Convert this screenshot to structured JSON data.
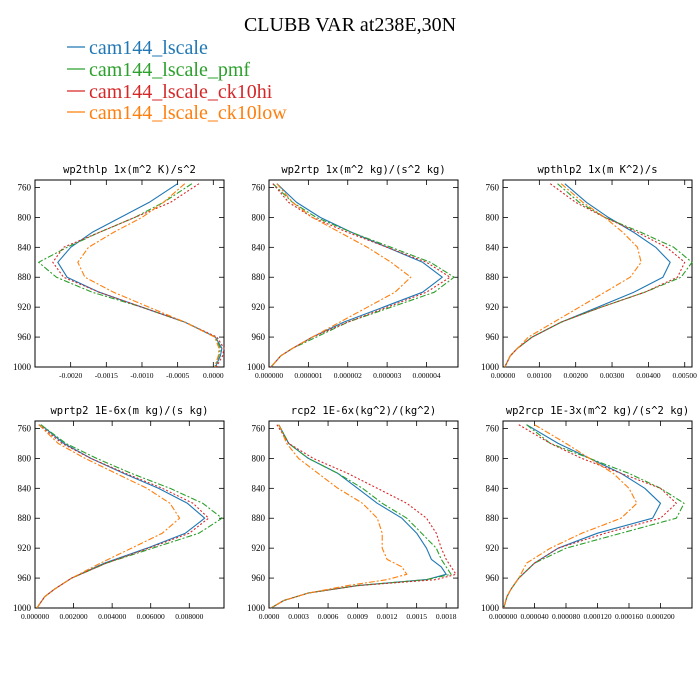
{
  "figure": {
    "title": "CLUBB VAR at238E,30N",
    "legend": [
      {
        "label": "cam144_lscale",
        "color": "#1f77b4"
      },
      {
        "label": "cam144_lscale_pmf",
        "color": "#2ca02c"
      },
      {
        "label": "cam144_lscale_ck10hi",
        "color": "#d62728"
      },
      {
        "label": "cam144_lscale_ck10low",
        "color": "#ff7f0e"
      }
    ]
  },
  "chart_data": [
    {
      "type": "line",
      "title": "wp2thlp  1x(m^2 K)/s^2",
      "xlim": [
        -0.0025,
        0.00015
      ],
      "ylim": [
        1000,
        750
      ],
      "y_ticks": [
        "760",
        "800",
        "840",
        "880",
        "920",
        "960",
        "1000"
      ],
      "x_ticks": [
        {
          "v": -0.002,
          "label": "-0.0020"
        },
        {
          "v": -0.0015,
          "label": "-0.0015"
        },
        {
          "v": -0.001,
          "label": "-0.0010"
        },
        {
          "v": -0.0005,
          "label": "-0.0005"
        },
        {
          "v": 0,
          "label": "0.0000"
        }
      ],
      "y": [
        755,
        780,
        800,
        820,
        840,
        860,
        880,
        900,
        920,
        940,
        960,
        975,
        985,
        1000
      ],
      "series": [
        {
          "name": "cam144_lscale",
          "color": "#1f77b4",
          "dash": "",
          "x": [
            -0.0005,
            -0.0009,
            -0.0013,
            -0.0017,
            -0.002,
            -0.00218,
            -0.00205,
            -0.0016,
            -0.001,
            -0.0004,
            3e-05,
            0.00012,
            0.0001,
            3e-05
          ]
        },
        {
          "name": "cam144_lscale_pmf",
          "color": "#2ca02c",
          "dash": "6,2,2,2",
          "x": [
            -0.0003,
            -0.0007,
            -0.0011,
            -0.0016,
            -0.00205,
            -0.00245,
            -0.0022,
            -0.0017,
            -0.001,
            -0.0004,
            3e-05,
            0.0001,
            8e-05,
            2e-05
          ]
        },
        {
          "name": "cam144_lscale_ck10hi",
          "color": "#d62728",
          "dash": "2,2",
          "x": [
            -0.0002,
            -0.0006,
            -0.0011,
            -0.0016,
            -0.0021,
            -0.00225,
            -0.0021,
            -0.0016,
            -0.001,
            -0.0004,
            5e-05,
            0.00015,
            0.00013,
            4e-05
          ]
        },
        {
          "name": "cam144_lscale_ck10low",
          "color": "#ff7f0e",
          "dash": "6,2,2,2",
          "x": [
            -0.0004,
            -0.0007,
            -0.001,
            -0.0014,
            -0.00175,
            -0.0019,
            -0.0018,
            -0.0014,
            -0.0009,
            -0.0004,
            2e-05,
            8e-05,
            7e-05,
            2e-05
          ]
        }
      ]
    },
    {
      "type": "line",
      "title": "wp2rtp  1x(m^2 kg)/(s^2 kg)",
      "xlim": [
        0,
        4.8e-06
      ],
      "ylim": [
        1000,
        750
      ],
      "y_ticks": [
        "760",
        "800",
        "840",
        "880",
        "920",
        "960",
        "1000"
      ],
      "x_ticks": [
        {
          "v": 0,
          "label": "0.000000"
        },
        {
          "v": 1e-06,
          "label": "0.000001"
        },
        {
          "v": 2e-06,
          "label": "0.000002"
        },
        {
          "v": 3e-06,
          "label": "0.000003"
        },
        {
          "v": 4e-06,
          "label": "0.000004"
        }
      ],
      "y": [
        755,
        780,
        800,
        820,
        840,
        860,
        880,
        900,
        920,
        940,
        960,
        975,
        985,
        1000
      ],
      "series": [
        {
          "name": "cam144_lscale",
          "color": "#1f77b4",
          "dash": "",
          "x": [
            2e-07,
            7e-07,
            1.3e-06,
            2.1e-06,
            3e-06,
            3.9e-06,
            4.4e-06,
            3.9e-06,
            2.9e-06,
            1.9e-06,
            1.1e-06,
            6e-07,
            3e-07,
            5e-08
          ]
        },
        {
          "name": "cam144_lscale_pmf",
          "color": "#2ca02c",
          "dash": "6,2,2,2",
          "x": [
            1e-07,
            6e-07,
            1.2e-06,
            2.1e-06,
            3.1e-06,
            4.1e-06,
            4.7e-06,
            4.2e-06,
            3.1e-06,
            2e-06,
            1.2e-06,
            6e-07,
            3e-07,
            5e-08
          ]
        },
        {
          "name": "cam144_lscale_ck10hi",
          "color": "#d62728",
          "dash": "2,2",
          "x": [
            1e-07,
            5e-07,
            1.1e-06,
            2e-06,
            3e-06,
            4e-06,
            4.6e-06,
            4e-06,
            3e-06,
            2e-06,
            1.1e-06,
            6e-07,
            3e-07,
            5e-08
          ]
        },
        {
          "name": "cam144_lscale_ck10low",
          "color": "#ff7f0e",
          "dash": "6,2,2,2",
          "x": [
            2e-07,
            6e-07,
            1.1e-06,
            1.8e-06,
            2.5e-06,
            3.1e-06,
            3.6e-06,
            3.2e-06,
            2.5e-06,
            1.8e-06,
            1.1e-06,
            6e-07,
            3e-07,
            5e-08
          ]
        }
      ]
    },
    {
      "type": "line",
      "title": "wpthlp2  1x(m K^2)/s",
      "xlim": [
        0,
        0.0052
      ],
      "ylim": [
        1000,
        750
      ],
      "y_ticks": [
        "760",
        "800",
        "840",
        "880",
        "920",
        "960",
        "1000"
      ],
      "x_ticks": [
        {
          "v": 0,
          "label": "0.00000"
        },
        {
          "v": 0.001,
          "label": "0.00100"
        },
        {
          "v": 0.002,
          "label": "0.00200"
        },
        {
          "v": 0.003,
          "label": "0.00300"
        },
        {
          "v": 0.004,
          "label": "0.00400"
        },
        {
          "v": 0.005,
          "label": "0.00500"
        }
      ],
      "y": [
        755,
        780,
        800,
        820,
        840,
        860,
        880,
        900,
        920,
        940,
        960,
        975,
        985,
        1000
      ],
      "series": [
        {
          "name": "cam144_lscale",
          "color": "#1f77b4",
          "dash": "",
          "x": [
            0.0017,
            0.0023,
            0.0029,
            0.0036,
            0.0042,
            0.0046,
            0.0044,
            0.0036,
            0.0026,
            0.0016,
            0.0008,
            0.0004,
            0.0002,
            5e-05
          ]
        },
        {
          "name": "cam144_lscale_pmf",
          "color": "#2ca02c",
          "dash": "6,2,2,2",
          "x": [
            0.0015,
            0.0021,
            0.0028,
            0.0038,
            0.0047,
            0.0052,
            0.0049,
            0.0039,
            0.0027,
            0.0016,
            0.0008,
            0.0004,
            0.0002,
            5e-05
          ]
        },
        {
          "name": "cam144_lscale_ck10hi",
          "color": "#d62728",
          "dash": "2,2",
          "x": [
            0.0013,
            0.002,
            0.0028,
            0.0037,
            0.0045,
            0.005,
            0.0048,
            0.0039,
            0.0027,
            0.0016,
            0.0008,
            0.0004,
            0.0002,
            5e-05
          ]
        },
        {
          "name": "cam144_lscale_ck10low",
          "color": "#ff7f0e",
          "dash": "6,2,2,2",
          "x": [
            0.0016,
            0.0022,
            0.0028,
            0.0033,
            0.0037,
            0.0038,
            0.0035,
            0.0028,
            0.0021,
            0.0014,
            0.0007,
            0.0004,
            0.0002,
            5e-05
          ]
        }
      ]
    },
    {
      "type": "line",
      "title": "wprtp2  1E-6x(m kg)/(s kg)",
      "xlim": [
        0,
        0.0098
      ],
      "ylim": [
        1000,
        750
      ],
      "y_ticks": [
        "760",
        "800",
        "840",
        "880",
        "920",
        "960",
        "1000"
      ],
      "x_ticks": [
        {
          "v": 0,
          "label": "0.000000"
        },
        {
          "v": 0.002,
          "label": "0.002000"
        },
        {
          "v": 0.004,
          "label": "0.004000"
        },
        {
          "v": 0.006,
          "label": "0.006000"
        },
        {
          "v": 0.008,
          "label": "0.008000"
        }
      ],
      "y": [
        755,
        780,
        800,
        820,
        840,
        860,
        880,
        900,
        920,
        940,
        960,
        975,
        985,
        1000
      ],
      "series": [
        {
          "name": "cam144_lscale",
          "color": "#1f77b4",
          "dash": "",
          "x": [
            0.0003,
            0.0015,
            0.0029,
            0.0046,
            0.0064,
            0.0079,
            0.0088,
            0.0078,
            0.0058,
            0.0036,
            0.0019,
            0.001,
            0.0005,
            0.0001
          ]
        },
        {
          "name": "cam144_lscale_pmf",
          "color": "#2ca02c",
          "dash": "6,2,2,2",
          "x": [
            0.0003,
            0.0016,
            0.0032,
            0.005,
            0.007,
            0.0087,
            0.0097,
            0.0085,
            0.0061,
            0.0037,
            0.0019,
            0.001,
            0.0005,
            0.0001
          ]
        },
        {
          "name": "cam144_lscale_ck10hi",
          "color": "#d62728",
          "dash": "2,2",
          "x": [
            0.0002,
            0.0014,
            0.0029,
            0.0047,
            0.0066,
            0.0082,
            0.009,
            0.008,
            0.0059,
            0.0037,
            0.0019,
            0.001,
            0.0005,
            0.0001
          ]
        },
        {
          "name": "cam144_lscale_ck10low",
          "color": "#ff7f0e",
          "dash": "6,2,2,2",
          "x": [
            0.0002,
            0.0012,
            0.0026,
            0.0042,
            0.0058,
            0.007,
            0.0075,
            0.0066,
            0.005,
            0.0034,
            0.0019,
            0.001,
            0.0005,
            0.0001
          ]
        }
      ]
    },
    {
      "type": "line",
      "title": "rcp2  1E-6x(kg^2)/(kg^2)",
      "xlim": [
        0,
        0.00192
      ],
      "ylim": [
        1000,
        750
      ],
      "y_ticks": [
        "760",
        "800",
        "840",
        "880",
        "920",
        "960",
        "1000"
      ],
      "x_ticks": [
        {
          "v": 0,
          "label": "0.0000"
        },
        {
          "v": 0.0003,
          "label": "0.0003"
        },
        {
          "v": 0.0006,
          "label": "0.0006"
        },
        {
          "v": 0.0009,
          "label": "0.0009"
        },
        {
          "v": 0.0012,
          "label": "0.0012"
        },
        {
          "v": 0.0015,
          "label": "0.0015"
        },
        {
          "v": 0.0018,
          "label": "0.0018"
        }
      ],
      "y": [
        755,
        780,
        800,
        820,
        840,
        860,
        880,
        900,
        920,
        935,
        945,
        955,
        962,
        970,
        980,
        990,
        1000
      ],
      "series": [
        {
          "name": "cam144_lscale",
          "color": "#1f77b4",
          "dash": "",
          "x": [
            0.0001,
            0.0002,
            0.0004,
            0.0007,
            0.0009,
            0.0011,
            0.00135,
            0.0015,
            0.0016,
            0.00165,
            0.00175,
            0.0018,
            0.0016,
            0.0009,
            0.0004,
            0.00015,
            2e-05
          ]
        },
        {
          "name": "cam144_lscale_pmf",
          "color": "#2ca02c",
          "dash": "6,2,2,2",
          "x": [
            0.0001,
            0.0002,
            0.0004,
            0.0007,
            0.00095,
            0.00115,
            0.0014,
            0.00155,
            0.0017,
            0.00175,
            0.0018,
            0.00185,
            0.0016,
            0.0009,
            0.0004,
            0.00015,
            2e-05
          ]
        },
        {
          "name": "cam144_lscale_ck10hi",
          "color": "#d62728",
          "dash": "2,2",
          "x": [
            8e-05,
            0.0002,
            0.00045,
            0.0008,
            0.0011,
            0.0014,
            0.0016,
            0.0017,
            0.00175,
            0.0018,
            0.00185,
            0.0019,
            0.0017,
            0.0009,
            0.0004,
            0.00015,
            2e-05
          ]
        },
        {
          "name": "cam144_lscale_ck10low",
          "color": "#ff7f0e",
          "dash": "6,2,2,2",
          "x": [
            0.0001,
            0.00018,
            0.0003,
            0.0005,
            0.0007,
            0.00095,
            0.0011,
            0.00115,
            0.00115,
            0.0012,
            0.00135,
            0.0014,
            0.0012,
            0.0008,
            0.0004,
            0.00015,
            2e-05
          ]
        }
      ]
    },
    {
      "type": "line",
      "title": "wp2rcp  1E-3x(m^2 kg)/(s^2 kg)",
      "xlim": [
        0,
        0.00024
      ],
      "ylim": [
        1000,
        750
      ],
      "y_ticks": [
        "760",
        "800",
        "840",
        "880",
        "920",
        "960",
        "1000"
      ],
      "x_ticks": [
        {
          "v": 0,
          "label": "0.000000"
        },
        {
          "v": 4e-05,
          "label": "0.000040"
        },
        {
          "v": 8e-05,
          "label": "0.000080"
        },
        {
          "v": 0.00012,
          "label": "0.000120"
        },
        {
          "v": 0.00016,
          "label": "0.000160"
        },
        {
          "v": 0.0002,
          "label": "0.000200"
        }
      ],
      "y": [
        755,
        780,
        800,
        820,
        840,
        860,
        880,
        900,
        920,
        940,
        960,
        975,
        985,
        1000
      ],
      "series": [
        {
          "name": "cam144_lscale",
          "color": "#1f77b4",
          "dash": "",
          "x": [
            3e-05,
            7e-05,
            0.00011,
            0.00015,
            0.00018,
            0.0002,
            0.00019,
            0.00012,
            7e-05,
            4e-05,
            2e-05,
            1e-05,
            5e-06,
            1e-06
          ]
        },
        {
          "name": "cam144_lscale_pmf",
          "color": "#2ca02c",
          "dash": "6,2,2,2",
          "x": [
            3e-05,
            6e-05,
            0.00011,
            0.00016,
            0.0002,
            0.00023,
            0.00022,
            0.00015,
            8e-05,
            4e-05,
            2e-05,
            1e-05,
            5e-06,
            1e-06
          ]
        },
        {
          "name": "cam144_lscale_ck10hi",
          "color": "#d62728",
          "dash": "2,2",
          "x": [
            2e-05,
            6e-05,
            0.0001,
            0.00015,
            0.0002,
            0.00022,
            0.0002,
            0.00013,
            7e-05,
            4e-05,
            2e-05,
            1e-05,
            5e-06,
            1e-06
          ]
        },
        {
          "name": "cam144_lscale_ck10low",
          "color": "#ff7f0e",
          "dash": "6,2,2,2",
          "x": [
            4e-05,
            8e-05,
            0.00011,
            0.00014,
            0.00016,
            0.00017,
            0.00015,
            0.0001,
            6e-05,
            3e-05,
            2e-05,
            1e-05,
            5e-06,
            1e-06
          ]
        }
      ]
    }
  ]
}
